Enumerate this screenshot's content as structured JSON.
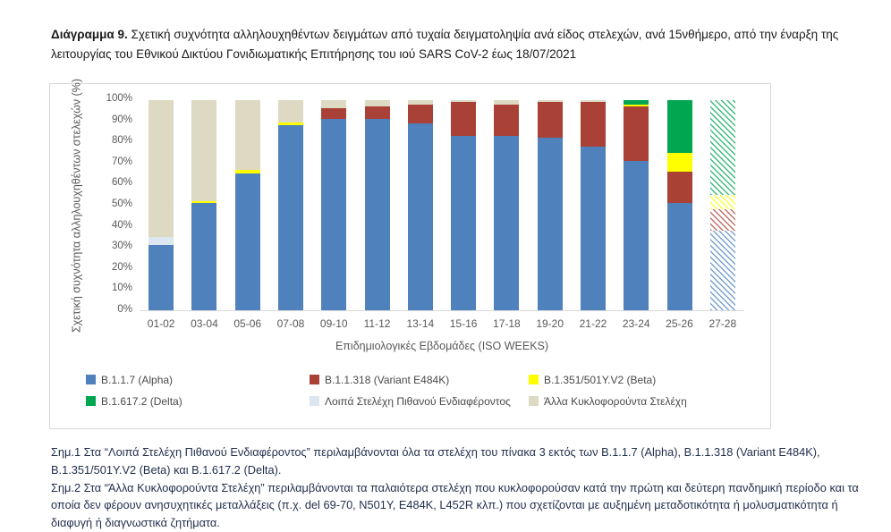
{
  "title": {
    "label": "Διάγραμμα 9.",
    "text": " Σχετική συχνότητα αλληλουχηθέντων δειγμάτων από τυχαία δειγματοληψία ανά είδος στελεχών, ανά 15νθήμερο, από την έναρξη της λειτουργίας του Εθνικού Δικτύου Γονιδιωματικής Επιτήρησης του ιού SARS CoV-2 έως 18/07/2021"
  },
  "chart_data": {
    "type": "bar",
    "stacked": true,
    "grid": false,
    "legend_position": "bottom",
    "xlabel": "Επιδημιολογικές Εβδομάδες (ISO WEEKS)",
    "ylabel": "Σχετική συχνότητα αλληλουχηθέντων στελεχών (%)",
    "ylim": [
      0,
      100
    ],
    "yticks": [
      "0%",
      "10%",
      "20%",
      "30%",
      "40%",
      "50%",
      "60%",
      "70%",
      "80%",
      "90%",
      "100%"
    ],
    "categories": [
      "01-02",
      "03-04",
      "05-06",
      "07-08",
      "09-10",
      "11-12",
      "13-14",
      "15-16",
      "17-18",
      "19-20",
      "21-22",
      "23-24",
      "25-26",
      "27-28"
    ],
    "hatched_categories": [
      "27-28"
    ],
    "hatch_note": "Bar 27-28 is drawn with diagonal hatching (provisional data)",
    "series": [
      {
        "name": "B.1.1.7 (Alpha)",
        "color": "#4f81bd",
        "values": [
          31,
          51,
          65,
          88,
          91,
          91,
          89,
          83,
          83,
          82,
          78,
          71,
          51,
          38
        ]
      },
      {
        "name": "B.1.1.318 (Variant E484K)",
        "color": "#a94136",
        "values": [
          0,
          0,
          0,
          0,
          5,
          6,
          9,
          16,
          15,
          17,
          21,
          26,
          15,
          10
        ]
      },
      {
        "name": "B.1.351/501Y.V2 (Beta)",
        "color": "#ffff00",
        "values": [
          0,
          1,
          2,
          1.5,
          0,
          0,
          0,
          0,
          0,
          0,
          0,
          1,
          9,
          7
        ]
      },
      {
        "name": "B.1.617.2 (Delta)",
        "color": "#00a650",
        "values": [
          0,
          0,
          0,
          0,
          0,
          0,
          0,
          0,
          0,
          0,
          0,
          2,
          25,
          45
        ]
      },
      {
        "name": "Λοιπά Στελέχη Πιθανού Ενδιαφέροντος",
        "color": "#dce6f1",
        "values": [
          4,
          0,
          0,
          0,
          0,
          0,
          0,
          0,
          0,
          0,
          0,
          0,
          0,
          0
        ]
      },
      {
        "name": "Άλλα Κυκλοφορούντα Στελέχη",
        "color": "#ddd9c3",
        "values": [
          65,
          48,
          33,
          10.5,
          4,
          3,
          2,
          1,
          2,
          1,
          1,
          0,
          0,
          0
        ]
      }
    ]
  },
  "footnotes": {
    "note1": "Σημ.1 Στα “Λοιπά Στελέχη Πιθανού Ενδιαφέροντος” περιλαμβάνονται όλα τα στελέχη του πίνακα 3 εκτός των B.1.1.7 (Alpha), B.1.1.318 (Variant E484K), B.1.351/501Y.V2 (Beta) και B.1.617.2 (Delta).",
    "note2": "Σημ.2 Στα “Άλλα Κυκλοφορούντα Στελέχη” περιλαμβάνονται τα παλαιότερα στελέχη που κυκλοφορούσαν κατά την πρώτη και δεύτερη πανδημική περίοδο και τα οποία δεν φέρουν ανησυχητικές μεταλλάξεις (π.χ. del 69-70, N501Y, E484K, L452R κλπ.) που σχετίζονται με αυξημένη μεταδοτικότητα ή μολυσματικότητα ή διαφυγή ή διαγνωστικά ζητήματα."
  }
}
